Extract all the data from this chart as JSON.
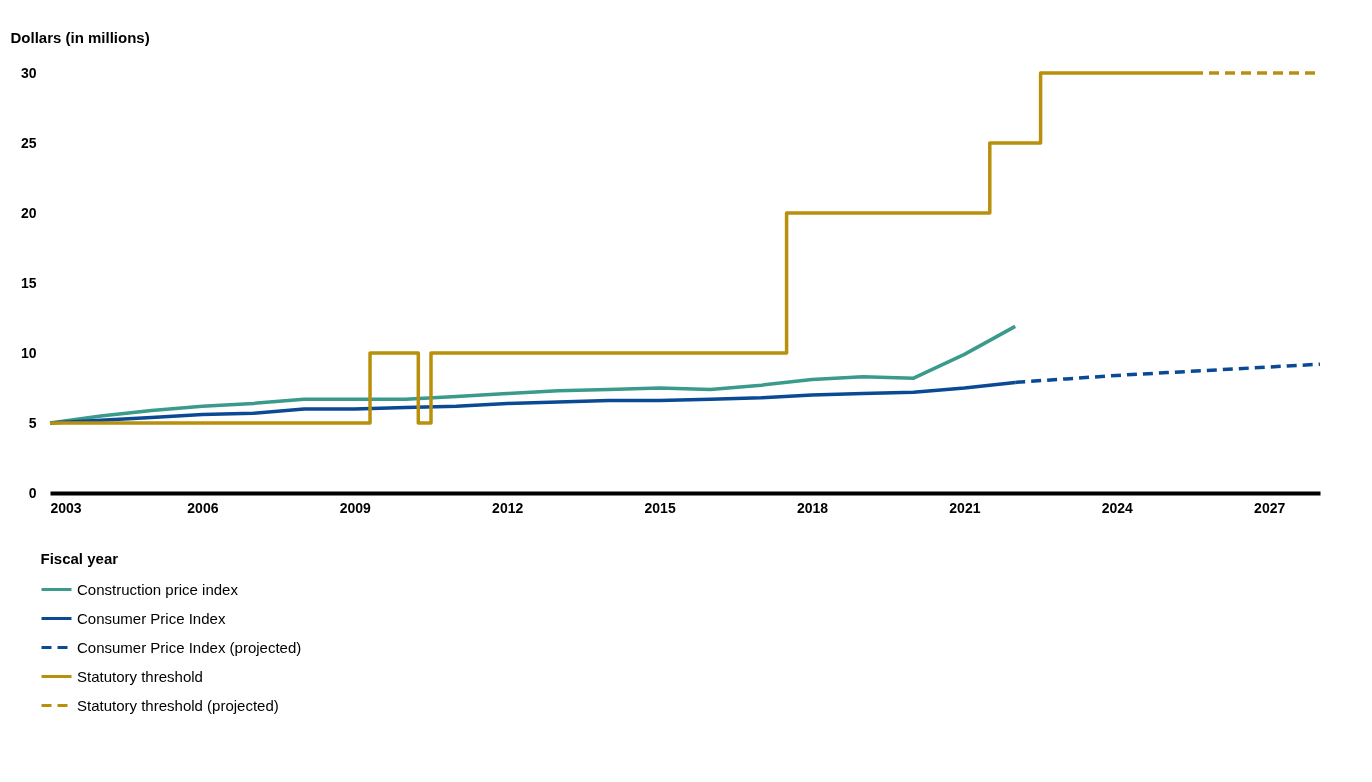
{
  "chart_data": {
    "type": "line",
    "ylabel": "Dollars (in millions)",
    "xlabel": "Fiscal year",
    "xlim": [
      2003,
      2028
    ],
    "xticks": [
      2003,
      2006,
      2009,
      2012,
      2015,
      2018,
      2021,
      2024,
      2027
    ],
    "ylim": [
      0,
      30
    ],
    "yticks": [
      0,
      5,
      10,
      15,
      20,
      25,
      30
    ],
    "legend": "bottom",
    "series": [
      {
        "name": "Construction price index",
        "color": "#3a9a8c",
        "line_style": "solid",
        "x": [
          2003,
          2004,
          2005,
          2006,
          2007,
          2008,
          2009,
          2010,
          2011,
          2012,
          2013,
          2014,
          2015,
          2016,
          2017,
          2018,
          2019,
          2020,
          2021,
          2022
        ],
        "values": [
          5.0,
          5.5,
          5.9,
          6.2,
          6.4,
          6.7,
          6.7,
          6.7,
          6.9,
          7.1,
          7.3,
          7.4,
          7.5,
          7.4,
          7.7,
          8.1,
          8.3,
          8.2,
          9.9,
          11.9
        ]
      },
      {
        "name": "Consumer Price Index",
        "color": "#0a4a94",
        "line_style": "solid",
        "x": [
          2003,
          2004,
          2005,
          2006,
          2007,
          2008,
          2009,
          2010,
          2011,
          2012,
          2013,
          2014,
          2015,
          2016,
          2017,
          2018,
          2019,
          2020,
          2021,
          2022
        ],
        "values": [
          5.0,
          5.2,
          5.4,
          5.6,
          5.7,
          6.0,
          6.0,
          6.1,
          6.2,
          6.4,
          6.5,
          6.6,
          6.6,
          6.7,
          6.8,
          7.0,
          7.1,
          7.2,
          7.5,
          7.9
        ]
      },
      {
        "name": "Consumer Price Index (projected)",
        "color": "#0a4a94",
        "line_style": "dashed",
        "x": [
          2022,
          2023,
          2024,
          2025,
          2026,
          2027,
          2028
        ],
        "values": [
          7.9,
          8.15,
          8.4,
          8.6,
          8.8,
          9.0,
          9.2
        ]
      },
      {
        "name": "Statutory threshold",
        "color": "#b8900c",
        "line_style": "solid",
        "x": [
          2003,
          2009.3,
          2009.3,
          2010.25,
          2010.25,
          2010.5,
          2010.5,
          2017.5,
          2017.5,
          2021.5,
          2021.5,
          2022.5,
          2022.5,
          2025.5
        ],
        "values": [
          5,
          5,
          10,
          10,
          5,
          5,
          10,
          10,
          20,
          20,
          25,
          25,
          30,
          30
        ]
      },
      {
        "name": "Statutory threshold (projected)",
        "color": "#b8900c",
        "line_style": "dashed",
        "x": [
          2025.5,
          2028
        ],
        "values": [
          30,
          30
        ]
      }
    ]
  }
}
